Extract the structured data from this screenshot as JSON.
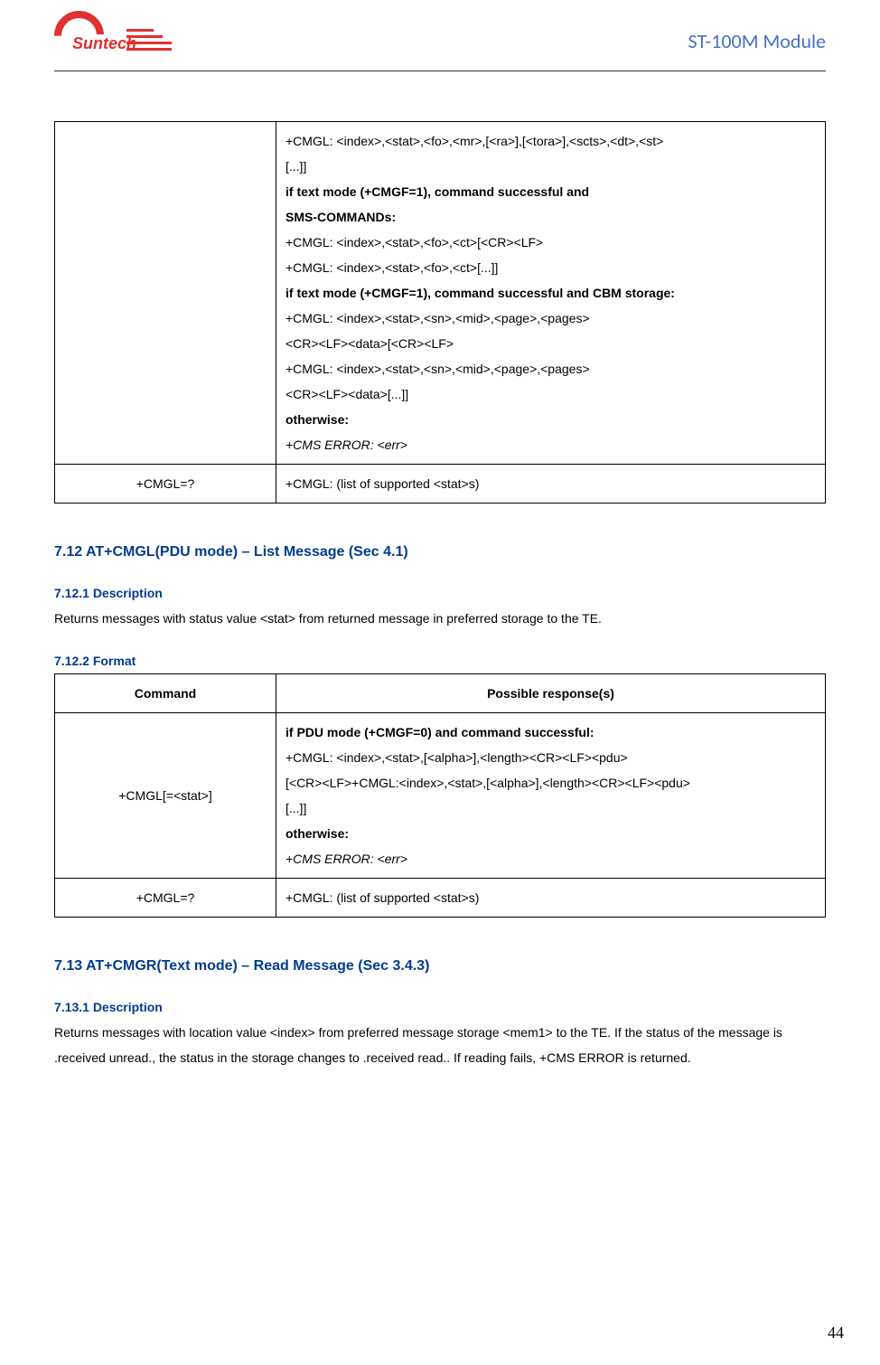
{
  "header": {
    "logo_text": "Suntech",
    "doc_title": "ST-100M Module"
  },
  "table1": {
    "row1": {
      "command": "",
      "lines": [
        {
          "text": "+CMGL: <index>,<stat>,<fo>,<mr>,[<ra>],[<tora>],<scts>,<dt>,<st>",
          "style": ""
        },
        {
          "text": "[...]]",
          "style": ""
        },
        {
          "text": "if text mode (+CMGF=1), command successful and",
          "style": "bold"
        },
        {
          "text": "SMS-COMMANDs:",
          "style": "bold"
        },
        {
          "text": "+CMGL: <index>,<stat>,<fo>,<ct>[<CR><LF>",
          "style": ""
        },
        {
          "text": "+CMGL: <index>,<stat>,<fo>,<ct>[...]]",
          "style": ""
        },
        {
          "text": "if text mode (+CMGF=1), command successful and CBM storage:",
          "style": "bold"
        },
        {
          "text": "+CMGL: <index>,<stat>,<sn>,<mid>,<page>,<pages>",
          "style": ""
        },
        {
          "text": "<CR><LF><data>[<CR><LF>",
          "style": ""
        },
        {
          "text": "+CMGL: <index>,<stat>,<sn>,<mid>,<page>,<pages>",
          "style": ""
        },
        {
          "text": "<CR><LF><data>[...]]",
          "style": ""
        },
        {
          "text": "otherwise:",
          "style": "bold"
        },
        {
          "text": "+CMS ERROR: <err>",
          "style": "italic"
        }
      ]
    },
    "row2": {
      "command": "+CMGL=?",
      "response": "+CMGL: (list of supported <stat>s)"
    }
  },
  "section712": {
    "heading": "7.12 AT+CMGL(PDU mode) – List Message (Sec 4.1)",
    "desc_heading": "7.12.1 Description",
    "desc_text": "Returns messages with status value <stat> from returned message in preferred storage to the TE.",
    "format_heading": "7.12.2 Format"
  },
  "table2": {
    "header": {
      "col1": "Command",
      "col2": "Possible response(s)"
    },
    "row1": {
      "command": "+CMGL[=<stat>]",
      "lines": [
        {
          "text": "if PDU mode (+CMGF=0) and command successful:",
          "style": "bold"
        },
        {
          "text": "+CMGL: <index>,<stat>,[<alpha>],<length><CR><LF><pdu>",
          "style": ""
        },
        {
          "text": "[<CR><LF>+CMGL:<index>,<stat>,[<alpha>],<length><CR><LF><pdu>",
          "style": ""
        },
        {
          "text": "[...]]",
          "style": ""
        },
        {
          "text": "otherwise:",
          "style": "bold"
        },
        {
          "text": "+CMS ERROR: <err>",
          "style": "italic"
        }
      ]
    },
    "row2": {
      "command": "+CMGL=?",
      "response": "+CMGL: (list of supported <stat>s)"
    }
  },
  "section713": {
    "heading": "7.13 AT+CMGR(Text mode) – Read Message (Sec 3.4.3)",
    "desc_heading": "7.13.1 Description",
    "desc_text": "Returns messages with location value <index> from preferred message storage <mem1> to the TE. If the status of the message is .received unread., the status in the storage changes to .received read.. If reading fails, +CMS ERROR is returned."
  },
  "page_number": "44"
}
